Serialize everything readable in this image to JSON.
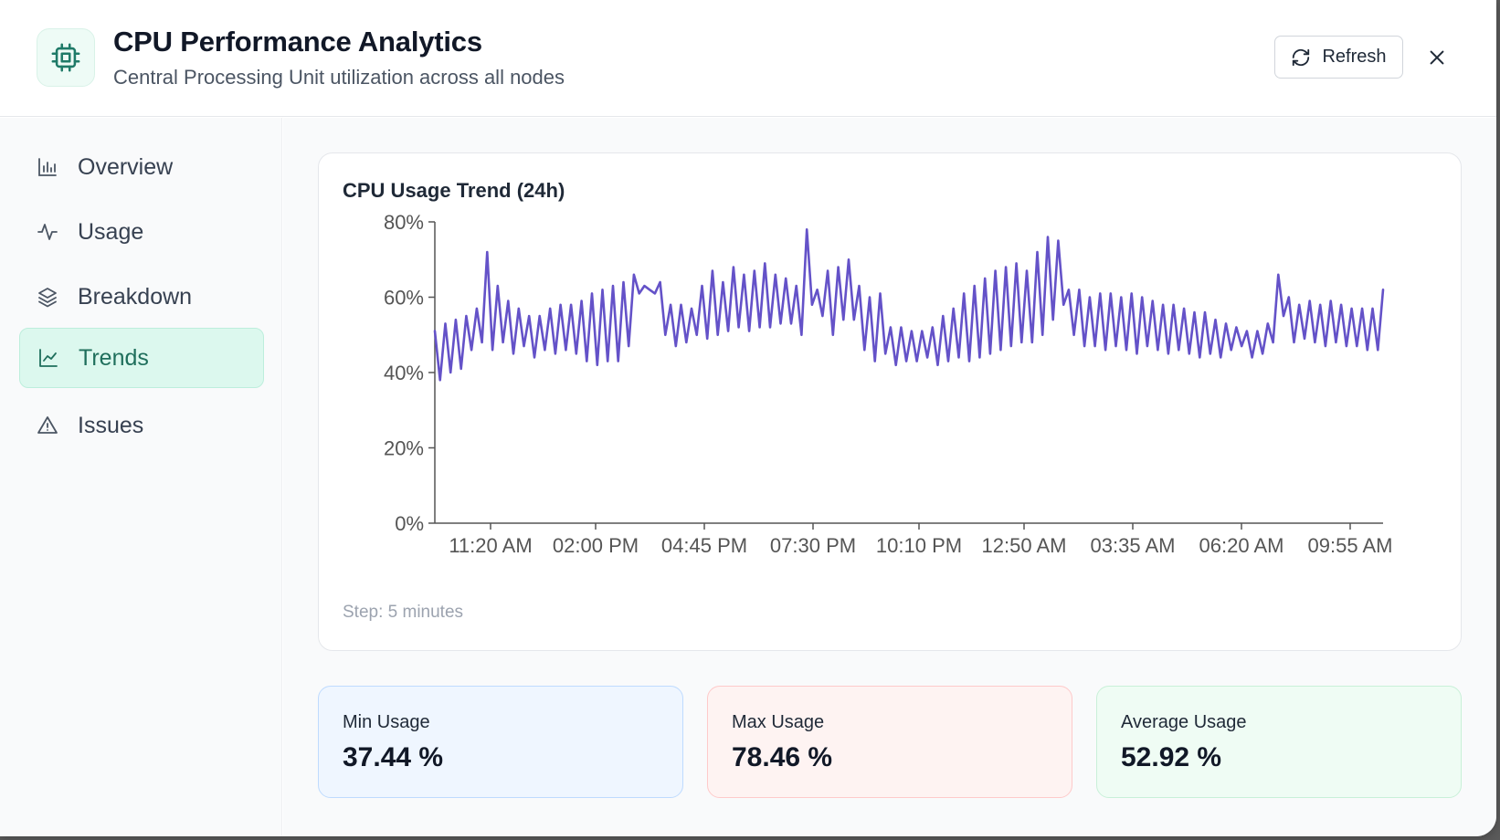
{
  "header": {
    "title": "CPU Performance Analytics",
    "subtitle": "Central Processing Unit utilization across all nodes",
    "refresh_label": "Refresh"
  },
  "sidebar": {
    "items": [
      {
        "label": "Overview",
        "icon": "bar-chart-icon",
        "active": false
      },
      {
        "label": "Usage",
        "icon": "activity-icon",
        "active": false
      },
      {
        "label": "Breakdown",
        "icon": "layers-icon",
        "active": false
      },
      {
        "label": "Trends",
        "icon": "line-chart-icon",
        "active": true
      },
      {
        "label": "Issues",
        "icon": "warning-icon",
        "active": false
      }
    ]
  },
  "chart": {
    "title": "CPU Usage Trend (24h)",
    "step_note": "Step: 5 minutes"
  },
  "chart_data": {
    "type": "line",
    "title": "CPU Usage Trend (24h)",
    "xlabel": "",
    "ylabel": "",
    "ylim": [
      0,
      80
    ],
    "y_ticks": [
      "0%",
      "20%",
      "40%",
      "60%",
      "80%"
    ],
    "x_ticks": [
      "11:20 AM",
      "02:00 PM",
      "04:45 PM",
      "07:30 PM",
      "10:10 PM",
      "12:50 AM",
      "03:35 AM",
      "06:20 AM",
      "09:55 AM"
    ],
    "line_color": "#6452c8",
    "grid": false,
    "legend": "none",
    "series": [
      {
        "values": [
          51,
          38,
          53,
          40,
          54,
          41,
          55,
          46,
          57,
          48,
          72,
          46,
          63,
          48,
          59,
          45,
          57,
          47,
          55,
          44,
          55,
          46,
          57,
          45,
          58,
          46,
          58,
          45,
          59,
          43,
          61,
          42,
          62,
          43,
          63,
          43,
          64,
          47,
          66,
          61,
          63,
          62,
          61,
          64,
          50,
          58,
          47,
          58,
          48,
          57,
          50,
          63,
          49,
          67,
          50,
          64,
          51,
          68,
          52,
          66,
          51,
          67,
          52,
          69,
          52,
          66,
          53,
          65,
          53,
          63,
          50,
          78,
          58,
          62,
          55,
          67,
          50,
          68,
          54,
          70,
          54,
          63,
          46,
          60,
          43,
          61,
          45,
          52,
          42,
          52,
          43,
          51,
          43,
          51,
          44,
          52,
          42,
          55,
          43,
          57,
          44,
          61,
          43,
          63,
          44,
          65,
          45,
          67,
          46,
          68,
          47,
          69,
          48,
          67,
          48,
          72,
          50,
          76,
          54,
          75,
          58,
          62,
          50,
          62,
          47,
          60,
          47,
          61,
          46,
          61,
          47,
          60,
          46,
          61,
          45,
          60,
          47,
          59,
          46,
          58,
          45,
          58,
          46,
          57,
          45,
          56,
          44,
          56,
          45,
          54,
          44,
          53,
          46,
          52,
          47,
          51,
          44,
          51,
          45,
          53,
          48,
          66,
          55,
          60,
          48,
          58,
          49,
          59,
          48,
          58,
          47,
          59,
          48,
          58,
          47,
          57,
          47,
          57,
          46,
          57,
          46,
          62
        ]
      }
    ]
  },
  "stats": {
    "min": {
      "label": "Min Usage",
      "value": "37.44 %"
    },
    "max": {
      "label": "Max Usage",
      "value": "78.46 %"
    },
    "avg": {
      "label": "Average Usage",
      "value": "52.92 %"
    }
  },
  "colors": {
    "accent": "#1f6f5c",
    "line": "#6452c8",
    "active_bg": "#dcf8ee"
  }
}
